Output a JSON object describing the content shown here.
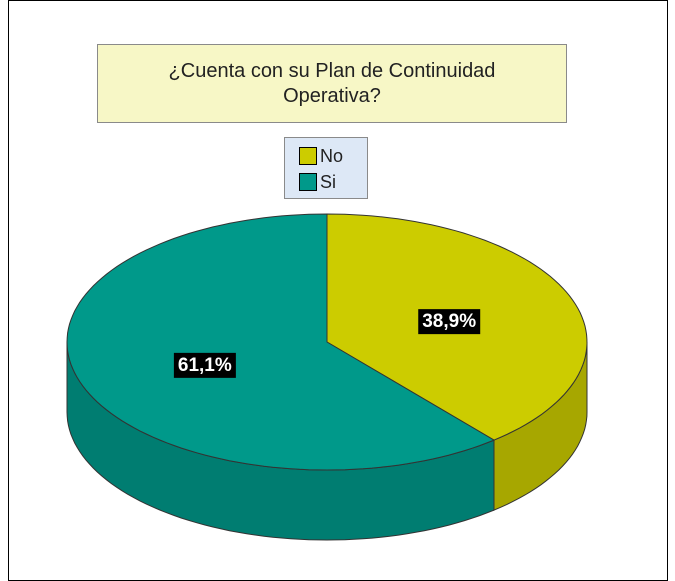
{
  "chart_data": {
    "type": "pie",
    "title": "¿Cuenta con su Plan de Continuidad Operativa?",
    "categories": [
      "No",
      "Si"
    ],
    "values": [
      38.9,
      61.1
    ],
    "value_labels": [
      "38,9%",
      "61,1%"
    ],
    "colors": [
      "#cccc00",
      "#00998a"
    ],
    "legend": "top"
  }
}
